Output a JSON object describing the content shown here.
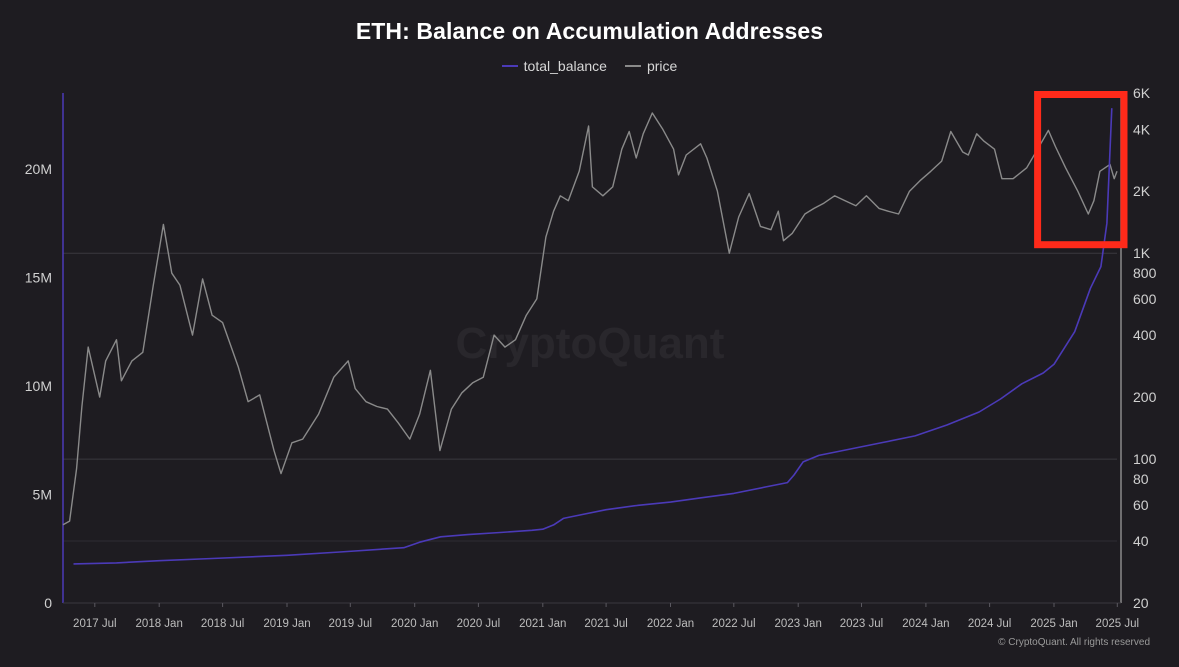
{
  "chart_data": {
    "type": "line",
    "title": "ETH: Balance on Accumulation Addresses",
    "legend": [
      {
        "name": "total_balance",
        "color": "#4b3ab8"
      },
      {
        "name": "price",
        "color": "#8a8a8a"
      }
    ],
    "legend_position": "top-center",
    "grid": true,
    "x_axis": {
      "range": [
        "2017-04-01",
        "2025-06-30"
      ],
      "tick_labels": [
        "2017 Jul",
        "2018 Jan",
        "2018 Jul",
        "2019 Jan",
        "2019 Jul",
        "2020 Jan",
        "2020 Jul",
        "2021 Jan",
        "2021 Jul",
        "2022 Jan",
        "2022 Jul",
        "2023 Jan",
        "2023 Jul",
        "2024 Jan",
        "2024 Jul",
        "2025 Jan",
        "2025 Jul"
      ]
    },
    "y_axis_left": {
      "series": "total_balance",
      "range": [
        0,
        23500000
      ],
      "ticks": [
        0,
        5000000,
        10000000,
        15000000,
        20000000
      ],
      "tick_labels": [
        "0",
        "5M",
        "10M",
        "15M",
        "20M"
      ]
    },
    "y_axis_right": {
      "series": "price",
      "scale": "log",
      "range": [
        20,
        6000
      ],
      "ticks": [
        20,
        40,
        60,
        80,
        100,
        200,
        400,
        600,
        800,
        1000,
        2000,
        4000,
        6000
      ],
      "tick_labels": [
        "20",
        "40",
        "60",
        "80",
        "100",
        "200",
        "400",
        "600",
        "800",
        "1K",
        "2K",
        "4K",
        "6K"
      ]
    },
    "series": [
      {
        "name": "total_balance",
        "axis": "left",
        "color": "#4b3ab8",
        "x": [
          "2017-05-01",
          "2017-09-01",
          "2018-01-01",
          "2018-06-01",
          "2019-01-01",
          "2019-06-01",
          "2019-12-01",
          "2020-01-15",
          "2020-03-15",
          "2020-06-01",
          "2020-09-01",
          "2020-12-01",
          "2021-01-01",
          "2021-02-01",
          "2021-03-01",
          "2021-05-01",
          "2021-07-01",
          "2021-10-01",
          "2022-01-01",
          "2022-04-01",
          "2022-07-01",
          "2022-10-01",
          "2022-12-01",
          "2022-12-20",
          "2023-01-15",
          "2023-03-01",
          "2023-06-01",
          "2023-09-01",
          "2023-12-01",
          "2024-03-01",
          "2024-06-01",
          "2024-08-01",
          "2024-10-01",
          "2024-12-01",
          "2025-01-01",
          "2025-03-01",
          "2025-04-15",
          "2025-05-15",
          "2025-06-01",
          "2025-06-15"
        ],
        "values": [
          1800000,
          1850000,
          1950000,
          2050000,
          2200000,
          2350000,
          2550000,
          2800000,
          3050000,
          3150000,
          3250000,
          3350000,
          3400000,
          3600000,
          3900000,
          4100000,
          4300000,
          4500000,
          4650000,
          4850000,
          5050000,
          5350000,
          5550000,
          5900000,
          6500000,
          6800000,
          7100000,
          7400000,
          7700000,
          8200000,
          8800000,
          9400000,
          10100000,
          10600000,
          11000000,
          12500000,
          14500000,
          15500000,
          17500000,
          22800000
        ]
      },
      {
        "name": "price",
        "axis": "right",
        "color": "#8a8a8a",
        "x": [
          "2017-04-01",
          "2017-04-20",
          "2017-05-10",
          "2017-05-25",
          "2017-06-12",
          "2017-07-15",
          "2017-08-01",
          "2017-09-01",
          "2017-09-15",
          "2017-10-15",
          "2017-11-15",
          "2017-12-15",
          "2018-01-13",
          "2018-02-06",
          "2018-03-01",
          "2018-04-06",
          "2018-05-05",
          "2018-06-01",
          "2018-07-01",
          "2018-08-15",
          "2018-09-12",
          "2018-10-15",
          "2018-11-25",
          "2018-12-15",
          "2019-01-15",
          "2019-02-15",
          "2019-04-01",
          "2019-05-15",
          "2019-06-25",
          "2019-07-15",
          "2019-08-15",
          "2019-09-15",
          "2019-10-15",
          "2019-11-15",
          "2019-12-18",
          "2020-01-15",
          "2020-02-15",
          "2020-03-13",
          "2020-04-15",
          "2020-05-15",
          "2020-06-15",
          "2020-07-15",
          "2020-08-15",
          "2020-09-15",
          "2020-10-15",
          "2020-11-15",
          "2020-12-15",
          "2021-01-10",
          "2021-02-01",
          "2021-02-20",
          "2021-03-15",
          "2021-04-15",
          "2021-05-12",
          "2021-05-23",
          "2021-06-22",
          "2021-07-20",
          "2021-08-15",
          "2021-09-05",
          "2021-09-25",
          "2021-10-15",
          "2021-11-10",
          "2021-12-10",
          "2022-01-10",
          "2022-01-24",
          "2022-02-15",
          "2022-03-28",
          "2022-04-15",
          "2022-05-15",
          "2022-06-18",
          "2022-07-15",
          "2022-08-14",
          "2022-09-15",
          "2022-10-15",
          "2022-11-05",
          "2022-11-20",
          "2022-12-15",
          "2023-01-20",
          "2023-02-15",
          "2023-03-15",
          "2023-04-15",
          "2023-05-15",
          "2023-06-15",
          "2023-07-15",
          "2023-08-20",
          "2023-09-15",
          "2023-10-15",
          "2023-11-15",
          "2023-12-15",
          "2024-01-15",
          "2024-02-15",
          "2024-03-12",
          "2024-04-15",
          "2024-05-01",
          "2024-05-25",
          "2024-06-15",
          "2024-07-15",
          "2024-08-05",
          "2024-09-06",
          "2024-10-15",
          "2024-11-15",
          "2024-12-16",
          "2025-01-05",
          "2025-02-03",
          "2025-03-10",
          "2025-04-09",
          "2025-04-25",
          "2025-05-12",
          "2025-06-10",
          "2025-06-22",
          "2025-06-30"
        ],
        "values": [
          48,
          50,
          90,
          180,
          350,
          200,
          300,
          380,
          240,
          300,
          330,
          700,
          1380,
          800,
          700,
          400,
          750,
          500,
          460,
          280,
          190,
          205,
          110,
          85,
          120,
          125,
          165,
          250,
          300,
          220,
          190,
          180,
          175,
          150,
          125,
          165,
          270,
          110,
          175,
          210,
          235,
          250,
          400,
          350,
          380,
          500,
          600,
          1200,
          1600,
          1900,
          1800,
          2500,
          4150,
          2100,
          1900,
          2100,
          3200,
          3900,
          2900,
          3800,
          4800,
          4000,
          3200,
          2400,
          3000,
          3400,
          2900,
          2000,
          1000,
          1500,
          1950,
          1350,
          1300,
          1600,
          1150,
          1250,
          1550,
          1650,
          1750,
          1900,
          1800,
          1700,
          1900,
          1650,
          1600,
          1550,
          2000,
          2250,
          2500,
          2800,
          3900,
          3100,
          3000,
          3800,
          3500,
          3200,
          2300,
          2300,
          2600,
          3200,
          3950,
          3300,
          2600,
          2000,
          1550,
          1800,
          2500,
          2700,
          2300,
          2500
        ]
      }
    ],
    "annotations": [
      {
        "type": "highlight-box",
        "color": "#ff2a1a",
        "x_range": [
          "2024-11-15",
          "2025-07-20"
        ],
        "y_range_right": [
          1100,
          5900
        ]
      }
    ]
  },
  "watermark": "CryptoQuant",
  "footer": {
    "copyright": "© CryptoQuant. All rights reserved"
  }
}
